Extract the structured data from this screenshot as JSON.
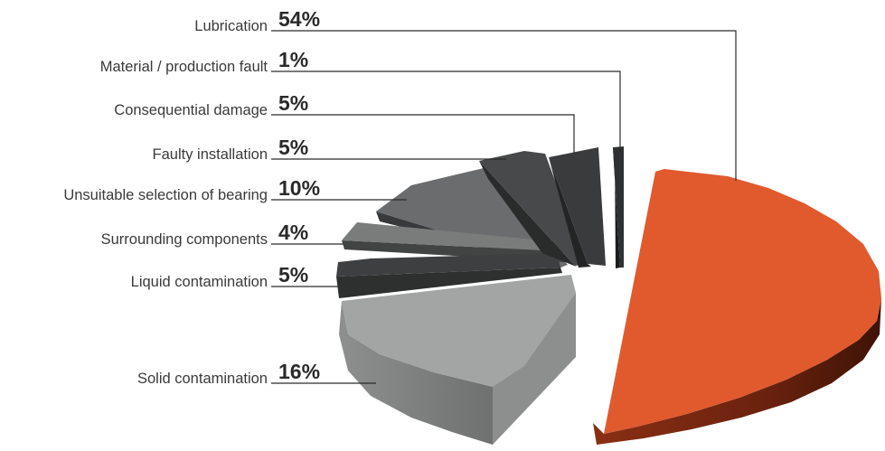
{
  "chart_data": {
    "type": "pie",
    "style": "3d-exploded",
    "categories": [
      "Lubrication",
      "Material / production fault",
      "Consequential damage",
      "Faulty installation",
      "Unsuitable selection of bearing",
      "Surrounding components",
      "Liquid contamination",
      "Solid contamination"
    ],
    "values": [
      54,
      1,
      5,
      5,
      10,
      4,
      5,
      16
    ],
    "value_labels": [
      "54%",
      "1%",
      "5%",
      "5%",
      "10%",
      "4%",
      "5%",
      "16%"
    ],
    "colors": [
      "#e05a2e",
      "#2f3031",
      "#3a3b3c",
      "#48494a",
      "#6b6c6d",
      "#7a7b7b",
      "#3e3f40",
      "#a3a4a4"
    ],
    "legend": "callout-left"
  }
}
